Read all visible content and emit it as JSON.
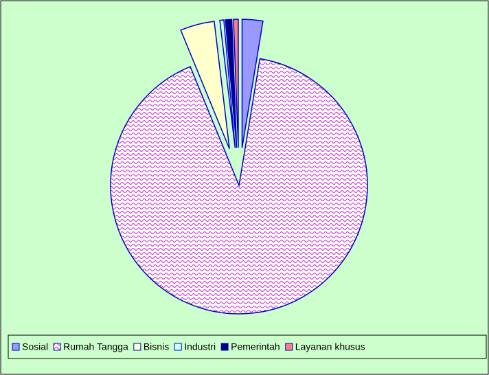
{
  "chart_data": {
    "type": "pie",
    "categories": [
      "Sosial",
      "Rumah Tangga",
      "Bisnis",
      "Industri",
      "Pemerintah",
      "Layanan khusus"
    ],
    "values": [
      2.6,
      91.2,
      4.3,
      0.5,
      0.8,
      0.6
    ],
    "colors": [
      "#9999ff",
      "#cc44cc",
      "#ffffcc",
      "#ccffff",
      "#000080",
      "#ff8080"
    ],
    "exploded": [
      true,
      false,
      true,
      true,
      true,
      true
    ],
    "patterned": [
      false,
      true,
      false,
      false,
      false,
      false
    ],
    "legend": "bottom"
  }
}
